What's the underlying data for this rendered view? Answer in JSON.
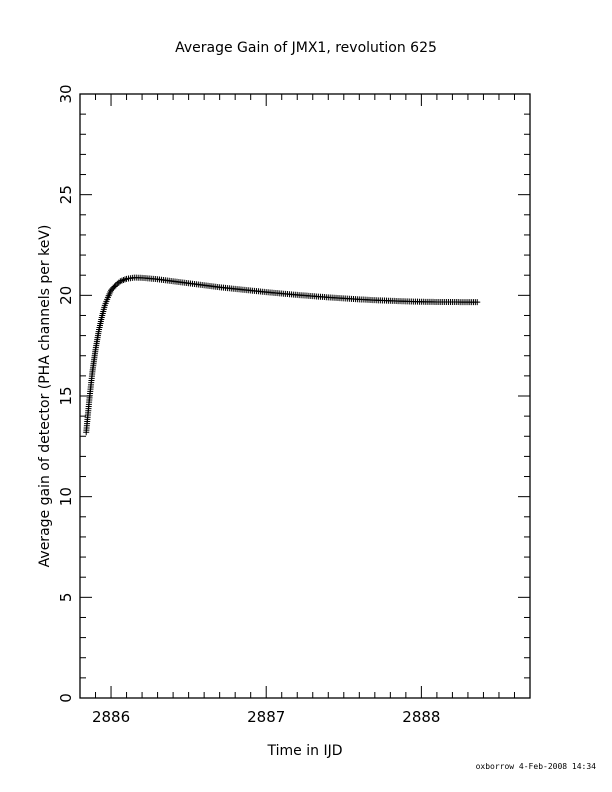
{
  "chart_data": {
    "type": "scatter",
    "marker": "+",
    "title": "Average Gain of JMX1, revolution 625",
    "xlabel": "Time in IJD",
    "ylabel": "Average gain of detector (PHA channels per keV)",
    "xlim": [
      2885.8,
      2888.7
    ],
    "ylim": [
      0,
      30
    ],
    "x_ticks": [
      2886,
      2887,
      2888
    ],
    "x_tick_labels": [
      "2886",
      "2887",
      "2888"
    ],
    "y_ticks": [
      0,
      5,
      10,
      15,
      20,
      25,
      30
    ],
    "y_tick_labels": [
      "0",
      "5",
      "10",
      "15",
      "20",
      "25",
      "30"
    ],
    "grid": false,
    "series": [
      {
        "points": [
          [
            2885.84,
            13.2
          ],
          [
            2885.86,
            14.8
          ],
          [
            2885.88,
            16.2
          ],
          [
            2885.9,
            17.3
          ],
          [
            2885.92,
            18.2
          ],
          [
            2885.94,
            18.9
          ],
          [
            2885.96,
            19.5
          ],
          [
            2885.98,
            19.9
          ],
          [
            2886.0,
            20.25
          ],
          [
            2886.03,
            20.5
          ],
          [
            2886.06,
            20.7
          ],
          [
            2886.1,
            20.82
          ],
          [
            2886.15,
            20.88
          ],
          [
            2886.2,
            20.87
          ],
          [
            2886.3,
            20.8
          ],
          [
            2886.4,
            20.7
          ],
          [
            2886.5,
            20.6
          ],
          [
            2886.6,
            20.5
          ],
          [
            2886.7,
            20.4
          ],
          [
            2886.8,
            20.32
          ],
          [
            2886.9,
            20.24
          ],
          [
            2887.0,
            20.16
          ],
          [
            2887.1,
            20.09
          ],
          [
            2887.2,
            20.02
          ],
          [
            2887.3,
            19.96
          ],
          [
            2887.4,
            19.9
          ],
          [
            2887.5,
            19.85
          ],
          [
            2887.6,
            19.8
          ],
          [
            2887.7,
            19.76
          ],
          [
            2887.8,
            19.73
          ],
          [
            2887.9,
            19.7
          ],
          [
            2888.0,
            19.68
          ],
          [
            2888.1,
            19.67
          ],
          [
            2888.2,
            19.67
          ],
          [
            2888.3,
            19.66
          ],
          [
            2888.36,
            19.66
          ]
        ]
      }
    ]
  },
  "footer": {
    "text": "oxborrow  4-Feb-2008 14:34"
  }
}
